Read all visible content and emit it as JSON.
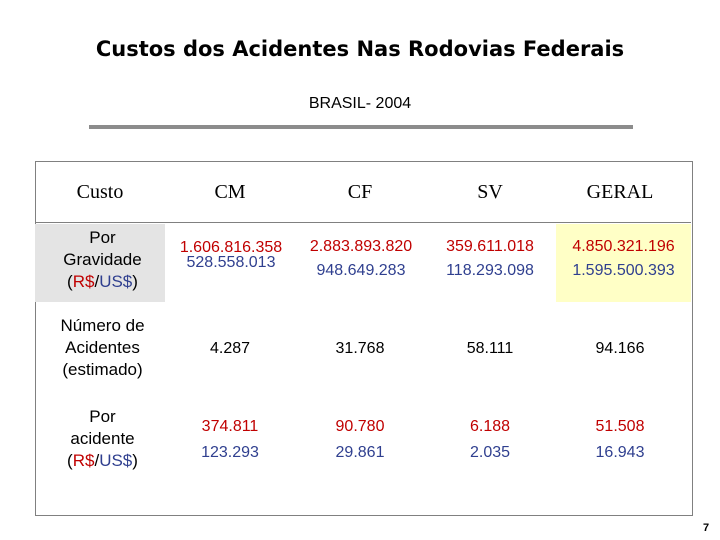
{
  "title": "Custos dos Acidentes Nas Rodovias Federais",
  "subtitle": "BRASIL- 2004",
  "table": {
    "headers": [
      "Custo",
      "CM",
      "CF",
      "SV",
      "GERAL"
    ],
    "rows": [
      {
        "label_lines": [
          "Por",
          "Gravidade"
        ],
        "currency": {
          "brl": "R$",
          "sep": "/",
          "usd": "US$",
          "open": "(",
          "close": ")"
        },
        "values": [
          [
            "1.606.816.358",
            "528.558.013"
          ],
          [
            "2.883.893.820",
            "948.649.283"
          ],
          [
            "359.611.018",
            "118.293.098"
          ],
          [
            "4.850.321.196",
            "1.595.500.393"
          ]
        ]
      },
      {
        "label_lines": [
          "Número de",
          "Acidentes",
          "(estimado)"
        ],
        "values": [
          [
            "4.287"
          ],
          [
            "31.768"
          ],
          [
            "58.111"
          ],
          [
            "94.166"
          ]
        ]
      },
      {
        "label_lines": [
          "Por",
          "acidente"
        ],
        "currency": {
          "brl": "R$",
          "sep": "/",
          "usd": "US$",
          "open": "(",
          "close": ")"
        },
        "values": [
          [
            "374.811",
            "123.293"
          ],
          [
            "90.780",
            "29.861"
          ],
          [
            "6.188",
            "2.035"
          ],
          [
            "51.508",
            "16.943"
          ]
        ]
      }
    ]
  },
  "page_number": "7",
  "colors": {
    "highlight_red": "#c00000",
    "highlight_blue": "#2f3f8f",
    "gray_fill": "#e4e4e4",
    "yellow_fill": "#ffffc6"
  }
}
